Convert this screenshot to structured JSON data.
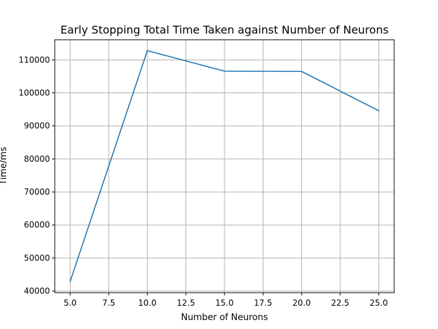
{
  "chart_data": {
    "type": "line",
    "title": "Early Stopping Total Time Taken against Number of Neurons",
    "xlabel": "Number of Neurons",
    "ylabel": "Time/ms",
    "xlim": [
      4.0,
      26.0
    ],
    "ylim": [
      39500,
      116100
    ],
    "x_ticks": [
      5.0,
      7.5,
      10.0,
      12.5,
      15.0,
      17.5,
      20.0,
      22.5,
      25.0
    ],
    "x_tick_labels": [
      "5.0",
      "7.5",
      "10.0",
      "12.5",
      "15.0",
      "17.5",
      "20.0",
      "22.5",
      "25.0"
    ],
    "y_ticks": [
      40000,
      50000,
      60000,
      70000,
      80000,
      90000,
      100000,
      110000
    ],
    "y_tick_labels": [
      "40000",
      "50000",
      "60000",
      "70000",
      "80000",
      "90000",
      "100000",
      "110000"
    ],
    "grid": true,
    "series": [
      {
        "color": "#1f77b4",
        "x": [
          5,
          10,
          15,
          20,
          25
        ],
        "y": [
          42900,
          112800,
          106600,
          106500,
          94600
        ]
      }
    ]
  }
}
